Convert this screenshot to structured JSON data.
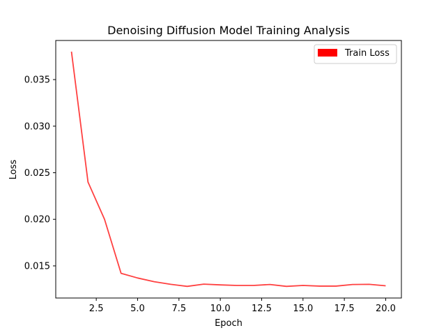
{
  "chart_data": {
    "type": "line",
    "title": "Denoising Diffusion Model Training Analysis",
    "xlabel": "Epoch",
    "ylabel": "Loss",
    "xlim": [
      0.05,
      20.95
    ],
    "ylim": [
      0.01155,
      0.0392
    ],
    "x_ticks": [
      2.5,
      5.0,
      7.5,
      10.0,
      12.5,
      15.0,
      17.5,
      20.0
    ],
    "x_tick_labels": [
      "2.5",
      "5.0",
      "7.5",
      "10.0",
      "12.5",
      "15.0",
      "17.5",
      "20.0"
    ],
    "y_ticks": [
      0.015,
      0.02,
      0.025,
      0.03,
      0.035
    ],
    "y_tick_labels": [
      "0.015",
      "0.020",
      "0.025",
      "0.030",
      "0.035"
    ],
    "legend_position": "top-right",
    "series": [
      {
        "name": "Train Loss",
        "color": "#ff0000",
        "x": [
          1,
          2,
          3,
          4,
          5,
          6,
          7,
          8,
          9,
          10,
          11,
          12,
          13,
          14,
          15,
          16,
          17,
          18,
          19,
          20
        ],
        "values": [
          0.038,
          0.024,
          0.02,
          0.0142,
          0.0137,
          0.0133,
          0.01302,
          0.0128,
          0.01304,
          0.01296,
          0.0129,
          0.0129,
          0.013,
          0.0128,
          0.0129,
          0.01283,
          0.01283,
          0.013,
          0.01302,
          0.01286
        ]
      }
    ]
  }
}
